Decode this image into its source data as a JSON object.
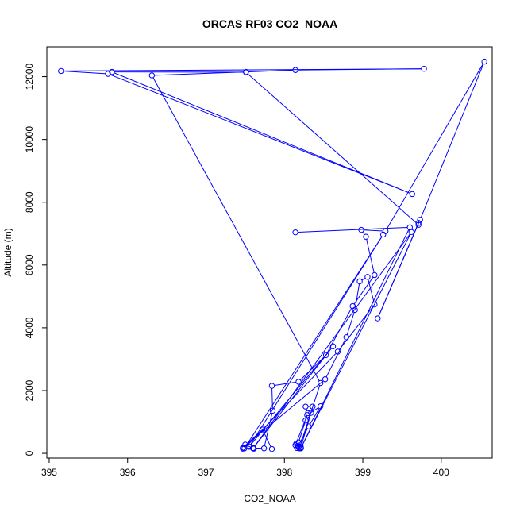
{
  "chart_data": {
    "type": "line",
    "title": "ORCAS RF03 CO2_NOAA",
    "xlabel": "CO2_NOAA",
    "ylabel": "Altitude (m)",
    "xlim": [
      394.97,
      400.65
    ],
    "ylim": [
      -150,
      12950
    ],
    "x_ticks": [
      395,
      396,
      397,
      398,
      399,
      400
    ],
    "y_ticks": [
      0,
      2000,
      4000,
      6000,
      8000,
      10000,
      12000
    ],
    "grid": false,
    "legend": "none",
    "series": [
      {
        "color": "#0000ff",
        "marker": "open-circle",
        "line": true,
        "points": [
          [
            398.21,
            160
          ],
          [
            398.18,
            220
          ],
          [
            398.15,
            310
          ],
          [
            398.18,
            350
          ],
          [
            398.27,
            1050
          ],
          [
            398.3,
            1280
          ],
          [
            398.27,
            1490
          ],
          [
            398.36,
            1490
          ],
          [
            398.34,
            1290
          ],
          [
            398.21,
            200
          ],
          [
            398.17,
            240
          ],
          [
            398.14,
            260
          ],
          [
            398.29,
            1220
          ],
          [
            398.46,
            1500
          ],
          [
            398.31,
            860
          ],
          [
            398.16,
            170
          ],
          [
            398.19,
            160
          ],
          [
            398.46,
            2240
          ],
          [
            396.31,
            12040
          ],
          [
            397.51,
            12150
          ],
          [
            398.14,
            12210
          ],
          [
            399.78,
            12250
          ],
          [
            395.15,
            12180
          ],
          [
            395.75,
            12090
          ],
          [
            399.63,
            8260
          ],
          [
            395.8,
            12150
          ],
          [
            397.51,
            12140
          ],
          [
            399.71,
            7280
          ],
          [
            399.71,
            7340
          ],
          [
            399.19,
            4300
          ],
          [
            399.73,
            7440
          ],
          [
            400.55,
            12480
          ],
          [
            399.29,
            7080
          ],
          [
            398.98,
            7120
          ],
          [
            399.04,
            6900
          ],
          [
            399.15,
            5680
          ],
          [
            398.87,
            4690
          ],
          [
            398.53,
            3130
          ],
          [
            398.18,
            2280
          ],
          [
            397.84,
            2150
          ],
          [
            397.85,
            1360
          ],
          [
            397.74,
            160
          ],
          [
            397.6,
            170
          ],
          [
            397.47,
            150
          ],
          [
            397.5,
            280
          ],
          [
            397.61,
            150
          ],
          [
            397.84,
            140
          ],
          [
            397.72,
            760
          ],
          [
            397.47,
            180
          ],
          [
            398.52,
            2360
          ],
          [
            398.79,
            3700
          ],
          [
            398.9,
            4570
          ],
          [
            398.96,
            5480
          ],
          [
            399.06,
            5620
          ],
          [
            399.15,
            4740
          ],
          [
            398.68,
            3240
          ],
          [
            397.49,
            160
          ],
          [
            399.26,
            6970
          ],
          [
            397.55,
            210
          ],
          [
            398.62,
            3410
          ],
          [
            397.6,
            160
          ],
          [
            399.62,
            7050
          ],
          [
            398.21,
            170
          ],
          [
            399.6,
            7200
          ],
          [
            398.14,
            7040
          ]
        ]
      }
    ]
  }
}
